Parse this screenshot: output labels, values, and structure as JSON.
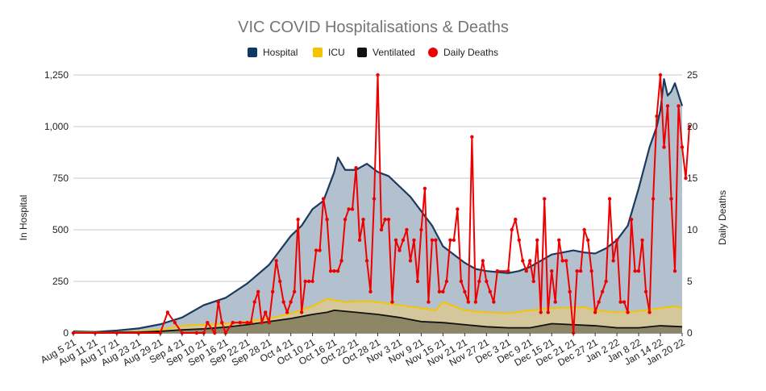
{
  "chart_data": {
    "type": "area",
    "title": "VIC COVID Hospitalisations & Deaths",
    "ylabel": "In Hospital",
    "y2label": "Daily Deaths",
    "ylim": [
      0,
      1250
    ],
    "y2lim": [
      0,
      25
    ],
    "yticks": [
      "0",
      "250",
      "500",
      "750",
      "1,000",
      "1,250"
    ],
    "y2ticks": [
      "0",
      "5",
      "10",
      "15",
      "20",
      "25"
    ],
    "xlim": [
      0,
      168
    ],
    "legend_position": "top",
    "x_tick_labels": [
      "Aug 5 21",
      "Aug 11 21",
      "Aug 17 21",
      "Aug 23 21",
      "Aug 29 21",
      "Sep 4 21",
      "Sep 10 21",
      "Sep 16 21",
      "Sep 22 21",
      "Sep 28 21",
      "Oct 4 21",
      "Oct 10 21",
      "Oct 16 21",
      "Oct 22 21",
      "Oct 28 21",
      "Nov 3 21",
      "Nov 9 21",
      "Nov 15 21",
      "Nov 21 21",
      "Nov 27 21",
      "Dec 3 21",
      "Dec 9 21",
      "Dec 15 21",
      "Dec 21 21",
      "Dec 27 21",
      "Jan 2 22",
      "Jan 8 22",
      "Jan 14 22",
      "Jan 20 22"
    ],
    "x_tick_days": [
      0,
      6,
      12,
      18,
      24,
      30,
      36,
      42,
      48,
      54,
      60,
      66,
      72,
      78,
      84,
      90,
      96,
      102,
      108,
      114,
      120,
      126,
      132,
      138,
      144,
      150,
      156,
      162,
      168
    ],
    "colors": {
      "hospital_fill": "#b3c1cf",
      "hospital_line": "#1b3a5e",
      "icu_fill": "#d4c79b",
      "icu_line": "#f5c400",
      "vent_fill": "#8c8666",
      "vent_line": "#111111",
      "deaths": "#ee0000",
      "grid": "#c8c8c8",
      "title": "#757575"
    },
    "series": [
      {
        "name": "Hospital",
        "key": "hospital",
        "swatch": "#0d3a62",
        "points": [
          [
            0,
            8
          ],
          [
            6,
            5
          ],
          [
            12,
            12
          ],
          [
            18,
            22
          ],
          [
            24,
            42
          ],
          [
            30,
            75
          ],
          [
            36,
            135
          ],
          [
            42,
            170
          ],
          [
            48,
            240
          ],
          [
            54,
            330
          ],
          [
            60,
            470
          ],
          [
            63,
            520
          ],
          [
            66,
            600
          ],
          [
            69,
            640
          ],
          [
            72,
            780
          ],
          [
            73,
            850
          ],
          [
            75,
            790
          ],
          [
            78,
            790
          ],
          [
            81,
            820
          ],
          [
            84,
            780
          ],
          [
            87,
            760
          ],
          [
            90,
            710
          ],
          [
            93,
            660
          ],
          [
            96,
            590
          ],
          [
            99,
            520
          ],
          [
            102,
            420
          ],
          [
            105,
            380
          ],
          [
            108,
            340
          ],
          [
            111,
            310
          ],
          [
            114,
            300
          ],
          [
            117,
            295
          ],
          [
            120,
            290
          ],
          [
            123,
            300
          ],
          [
            126,
            320
          ],
          [
            129,
            350
          ],
          [
            132,
            380
          ],
          [
            135,
            390
          ],
          [
            138,
            400
          ],
          [
            141,
            390
          ],
          [
            144,
            385
          ],
          [
            147,
            410
          ],
          [
            150,
            450
          ],
          [
            153,
            520
          ],
          [
            156,
            700
          ],
          [
            159,
            900
          ],
          [
            161,
            1000
          ],
          [
            162,
            1080
          ],
          [
            163,
            1230
          ],
          [
            164,
            1150
          ],
          [
            165,
            1170
          ],
          [
            166,
            1210
          ],
          [
            168,
            1100
          ]
        ]
      },
      {
        "name": "ICU",
        "key": "icu",
        "swatch": "#f5c400",
        "points": [
          [
            0,
            3
          ],
          [
            12,
            3
          ],
          [
            18,
            8
          ],
          [
            24,
            15
          ],
          [
            30,
            35
          ],
          [
            36,
            40
          ],
          [
            42,
            45
          ],
          [
            48,
            55
          ],
          [
            54,
            70
          ],
          [
            60,
            95
          ],
          [
            66,
            130
          ],
          [
            70,
            165
          ],
          [
            75,
            150
          ],
          [
            81,
            155
          ],
          [
            84,
            150
          ],
          [
            90,
            135
          ],
          [
            96,
            120
          ],
          [
            100,
            110
          ],
          [
            102,
            150
          ],
          [
            105,
            130
          ],
          [
            108,
            110
          ],
          [
            114,
            100
          ],
          [
            120,
            95
          ],
          [
            126,
            110
          ],
          [
            129,
            115
          ],
          [
            132,
            120
          ],
          [
            141,
            125
          ],
          [
            144,
            110
          ],
          [
            150,
            100
          ],
          [
            156,
            105
          ],
          [
            162,
            120
          ],
          [
            166,
            130
          ],
          [
            168,
            120
          ]
        ]
      },
      {
        "name": "Ventilated",
        "key": "vent",
        "swatch": "#111111",
        "points": [
          [
            0,
            1
          ],
          [
            18,
            4
          ],
          [
            24,
            8
          ],
          [
            30,
            15
          ],
          [
            36,
            20
          ],
          [
            42,
            28
          ],
          [
            48,
            40
          ],
          [
            54,
            55
          ],
          [
            60,
            70
          ],
          [
            66,
            90
          ],
          [
            70,
            100
          ],
          [
            72,
            110
          ],
          [
            78,
            100
          ],
          [
            84,
            90
          ],
          [
            90,
            75
          ],
          [
            96,
            55
          ],
          [
            102,
            50
          ],
          [
            108,
            40
          ],
          [
            114,
            30
          ],
          [
            120,
            25
          ],
          [
            126,
            25
          ],
          [
            132,
            45
          ],
          [
            138,
            40
          ],
          [
            144,
            35
          ],
          [
            150,
            25
          ],
          [
            156,
            25
          ],
          [
            162,
            35
          ],
          [
            168,
            30
          ]
        ]
      },
      {
        "name": "Daily Deaths",
        "key": "deaths",
        "swatch": "#ee0000",
        "points": [
          [
            0,
            0
          ],
          [
            6,
            0
          ],
          [
            12,
            0
          ],
          [
            18,
            0
          ],
          [
            24,
            0
          ],
          [
            26,
            2
          ],
          [
            28,
            1
          ],
          [
            30,
            0
          ],
          [
            34,
            0
          ],
          [
            36,
            0
          ],
          [
            37,
            1
          ],
          [
            39,
            0
          ],
          [
            40,
            3
          ],
          [
            41,
            1
          ],
          [
            42,
            0
          ],
          [
            44,
            1
          ],
          [
            46,
            1
          ],
          [
            48,
            1
          ],
          [
            49,
            1
          ],
          [
            50,
            3
          ],
          [
            51,
            4
          ],
          [
            52,
            1
          ],
          [
            53,
            2
          ],
          [
            54,
            1
          ],
          [
            55,
            4
          ],
          [
            56,
            7
          ],
          [
            57,
            5
          ],
          [
            58,
            3
          ],
          [
            59,
            2
          ],
          [
            60,
            3
          ],
          [
            61,
            4
          ],
          [
            62,
            11
          ],
          [
            63,
            2
          ],
          [
            64,
            5
          ],
          [
            65,
            5
          ],
          [
            66,
            5
          ],
          [
            67,
            8
          ],
          [
            68,
            8
          ],
          [
            69,
            13
          ],
          [
            70,
            11
          ],
          [
            71,
            6
          ],
          [
            72,
            6
          ],
          [
            73,
            6
          ],
          [
            74,
            7
          ],
          [
            75,
            11
          ],
          [
            76,
            12
          ],
          [
            77,
            12
          ],
          [
            78,
            16
          ],
          [
            79,
            9
          ],
          [
            80,
            11
          ],
          [
            81,
            7
          ],
          [
            82,
            4
          ],
          [
            83,
            13
          ],
          [
            84,
            25
          ],
          [
            85,
            10
          ],
          [
            86,
            11
          ],
          [
            87,
            11
          ],
          [
            88,
            3
          ],
          [
            89,
            9
          ],
          [
            90,
            8
          ],
          [
            91,
            9
          ],
          [
            92,
            10
          ],
          [
            93,
            7
          ],
          [
            94,
            9
          ],
          [
            95,
            5
          ],
          [
            96,
            10
          ],
          [
            97,
            14
          ],
          [
            98,
            3
          ],
          [
            99,
            9
          ],
          [
            100,
            9
          ],
          [
            101,
            4
          ],
          [
            102,
            4
          ],
          [
            103,
            5
          ],
          [
            104,
            9
          ],
          [
            105,
            9
          ],
          [
            106,
            12
          ],
          [
            107,
            5
          ],
          [
            108,
            4
          ],
          [
            109,
            3
          ],
          [
            110,
            19
          ],
          [
            111,
            3
          ],
          [
            112,
            5
          ],
          [
            113,
            7
          ],
          [
            114,
            5
          ],
          [
            115,
            4
          ],
          [
            116,
            3
          ],
          [
            117,
            6
          ],
          [
            120,
            6
          ],
          [
            121,
            10
          ],
          [
            122,
            11
          ],
          [
            123,
            9
          ],
          [
            124,
            7
          ],
          [
            125,
            6
          ],
          [
            126,
            7
          ],
          [
            127,
            5
          ],
          [
            128,
            9
          ],
          [
            129,
            2
          ],
          [
            130,
            13
          ],
          [
            131,
            2
          ],
          [
            132,
            6
          ],
          [
            133,
            3
          ],
          [
            134,
            9
          ],
          [
            135,
            7
          ],
          [
            136,
            7
          ],
          [
            137,
            4
          ],
          [
            138,
            0
          ],
          [
            139,
            6
          ],
          [
            140,
            6
          ],
          [
            141,
            10
          ],
          [
            142,
            9
          ],
          [
            143,
            6
          ],
          [
            144,
            2
          ],
          [
            145,
            3
          ],
          [
            146,
            4
          ],
          [
            147,
            5
          ],
          [
            148,
            13
          ],
          [
            149,
            7
          ],
          [
            150,
            9
          ],
          [
            151,
            3
          ],
          [
            152,
            3
          ],
          [
            153,
            2
          ],
          [
            154,
            11
          ],
          [
            155,
            6
          ],
          [
            156,
            6
          ],
          [
            157,
            9
          ],
          [
            158,
            4
          ],
          [
            159,
            2
          ],
          [
            160,
            13
          ],
          [
            161,
            21
          ],
          [
            162,
            25
          ],
          [
            163,
            18
          ],
          [
            164,
            22
          ],
          [
            165,
            13
          ],
          [
            166,
            6
          ],
          [
            167,
            22
          ],
          [
            168,
            18
          ],
          [
            169,
            15
          ],
          [
            170,
            20
          ]
        ]
      }
    ]
  }
}
